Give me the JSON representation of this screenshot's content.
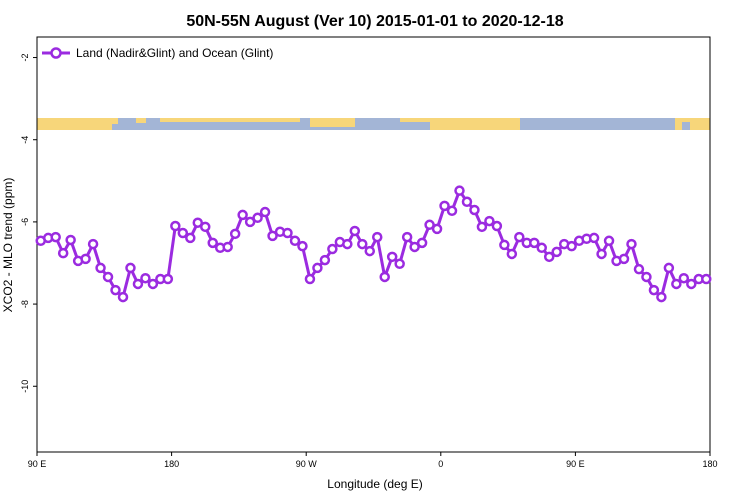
{
  "chart_data": {
    "type": "line",
    "title": "50N-55N August (Ver 10)   2015-01-01 to 2020-12-18",
    "x_label": "Longitude (deg E)",
    "y_label": "XCO2 - MLO trend (ppm)",
    "x": [
      92.5,
      97.5,
      102.5,
      107.5,
      112.5,
      117.5,
      122.5,
      127.5,
      132.5,
      137.5,
      142.5,
      147.5,
      152.5,
      157.5,
      162.5,
      167.5,
      172.5,
      177.5,
      182.5,
      187.5,
      192.5,
      197.5,
      202.5,
      207.5,
      212.5,
      217.5,
      222.5,
      227.5,
      232.5,
      237.5,
      242.5,
      247.5,
      252.5,
      257.5,
      262.5,
      267.5,
      272.5,
      277.5,
      282.5,
      287.5,
      292.5,
      297.5,
      302.5,
      307.5,
      312.5,
      317.5,
      322.5,
      327.5,
      332.5,
      337.5,
      342.5,
      347.5,
      352.5,
      357.5,
      362.5,
      367.5,
      372.5,
      377.5,
      382.5,
      387.5,
      392.5,
      397.5,
      402.5,
      407.5,
      412.5,
      417.5,
      422.5,
      427.5,
      432.5,
      437.5,
      442.5,
      447.5,
      452.5,
      457.5,
      462.5,
      467.5,
      472.5,
      477.5,
      482.5,
      487.5,
      492.5,
      497.5,
      502.5,
      507.5,
      512.5,
      517.5,
      522.5,
      527.5,
      532.5,
      537.5
    ],
    "series": [
      {
        "name": "Land (Nadir&Glint) and Ocean (Glint)",
        "color": "#9b2be0",
        "values": [
          -6.46,
          -6.39,
          -6.37,
          -6.76,
          -6.44,
          -6.95,
          -6.9,
          -6.54,
          -7.12,
          -7.34,
          -7.66,
          -7.83,
          -7.12,
          -7.51,
          -7.37,
          -7.51,
          -7.39,
          -7.39,
          -6.1,
          -6.27,
          -6.39,
          -6.02,
          -6.12,
          -6.51,
          -6.63,
          -6.61,
          -6.29,
          -5.83,
          -6.0,
          -5.9,
          -5.76,
          -6.34,
          -6.24,
          -6.27,
          -6.46,
          -6.59,
          -7.39,
          -7.12,
          -6.93,
          -6.66,
          -6.49,
          -6.54,
          -6.22,
          -6.54,
          -6.71,
          -6.37,
          -7.34,
          -6.85,
          -7.02,
          -6.37,
          -6.61,
          -6.51,
          -6.07,
          -6.17,
          -5.61,
          -5.73,
          -5.24,
          -5.51,
          -5.71,
          -6.12,
          -5.98,
          -6.1,
          -6.56,
          -6.78,
          -6.37,
          -6.51,
          -6.51,
          -6.63,
          -6.85,
          -6.73,
          -6.54,
          -6.59,
          -6.46,
          -6.41,
          -6.39,
          -6.78,
          -6.46,
          -6.95,
          -6.9,
          -6.54,
          -7.15,
          -7.34,
          -7.66,
          -7.83,
          -7.12,
          -7.51,
          -7.37,
          -7.51,
          -7.39,
          -7.39
        ]
      }
    ],
    "xlim": [
      90,
      540
    ],
    "xticks": [
      {
        "value": 90,
        "label": "90 E"
      },
      {
        "value": 180,
        "label": "180"
      },
      {
        "value": 270,
        "label": "90 W"
      },
      {
        "value": 360,
        "label": "0"
      },
      {
        "value": 450,
        "label": "90 E"
      },
      {
        "value": 540,
        "label": "180"
      }
    ],
    "ylim": [
      -11.6,
      -1.5
    ],
    "yticks": [
      -2,
      -4,
      -6,
      -8,
      -10
    ],
    "grid": false,
    "legend": "top-left"
  }
}
